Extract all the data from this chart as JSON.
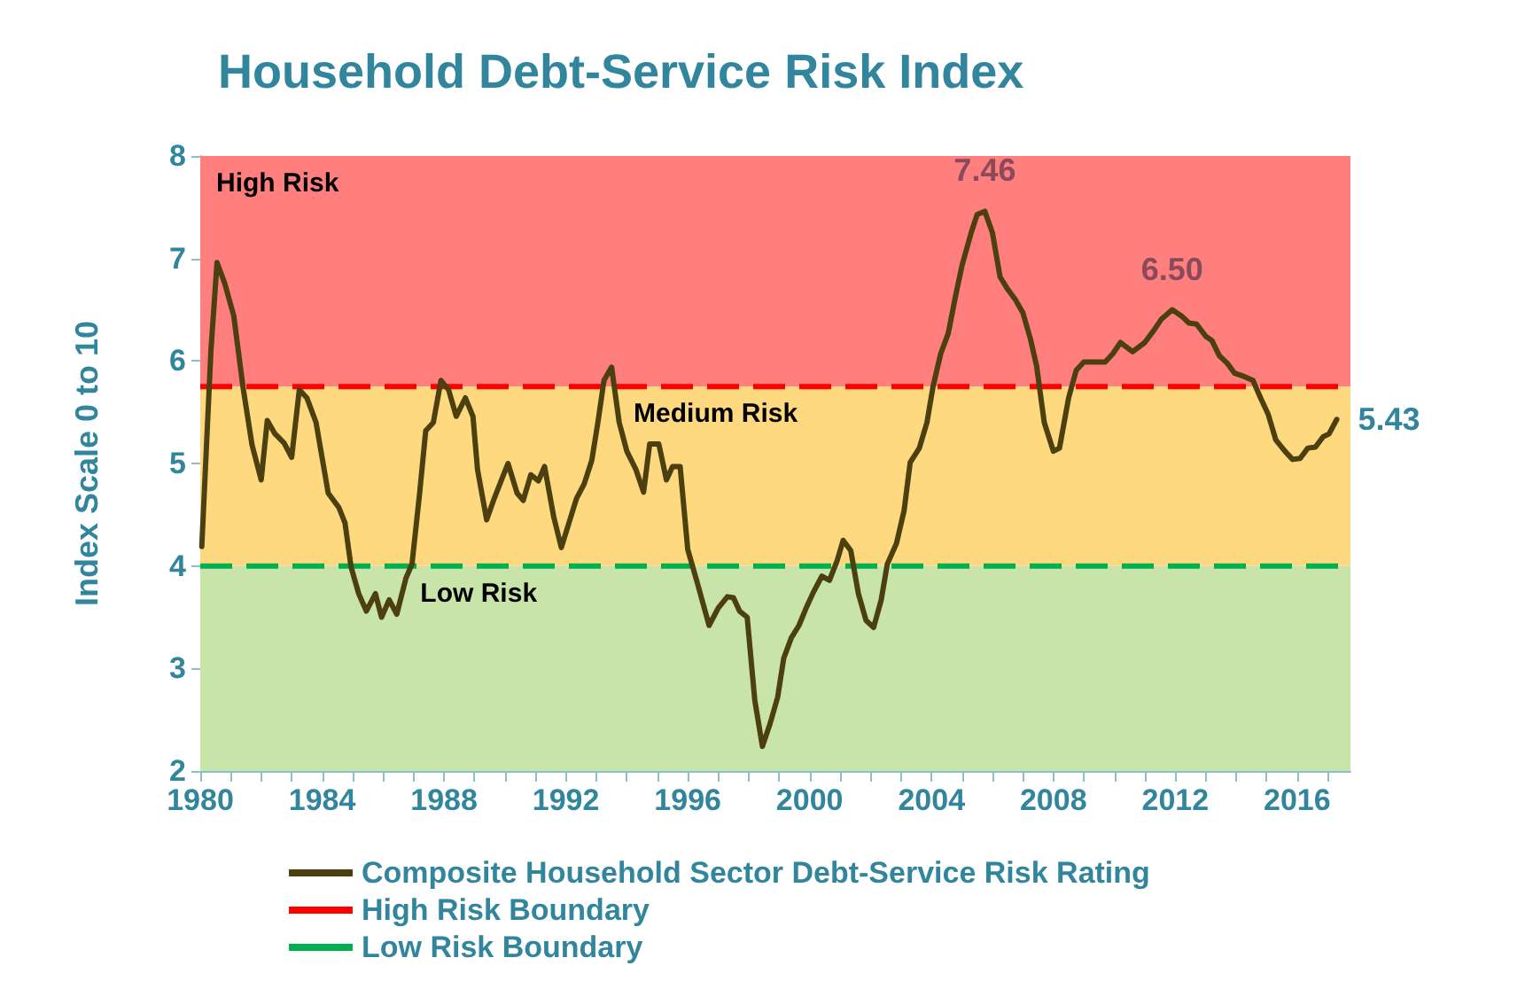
{
  "chart_data": {
    "type": "line",
    "title": "Household Debt-Service Risk Index",
    "ylabel": "Index Scale 0 to 10",
    "xlim": [
      1980,
      2017.75
    ],
    "ylim": [
      2,
      8
    ],
    "yticks": [
      2,
      3,
      4,
      5,
      6,
      7,
      8
    ],
    "xticks": [
      1980,
      {
        "value": 1981,
        "label": null
      },
      {
        "value": 1982,
        "label": null
      },
      {
        "value": 1983,
        "label": null
      },
      1984,
      {
        "value": 1985,
        "label": null
      },
      {
        "value": 1986,
        "label": null
      },
      {
        "value": 1987,
        "label": null
      },
      1988,
      {
        "value": 1989,
        "label": null
      },
      {
        "value": 1990,
        "label": null
      },
      {
        "value": 1991,
        "label": null
      },
      1992,
      {
        "value": 1993,
        "label": null
      },
      {
        "value": 1994,
        "label": null
      },
      {
        "value": 1995,
        "label": null
      },
      1996,
      {
        "value": 1997,
        "label": null
      },
      {
        "value": 1998,
        "label": null
      },
      {
        "value": 1999,
        "label": null
      },
      2000,
      {
        "value": 2001,
        "label": null
      },
      {
        "value": 2002,
        "label": null
      },
      {
        "value": 2003,
        "label": null
      },
      2004,
      {
        "value": 2005,
        "label": null
      },
      {
        "value": 2006,
        "label": null
      },
      {
        "value": 2007,
        "label": null
      },
      2008,
      {
        "value": 2009,
        "label": null
      },
      {
        "value": 2010,
        "label": null
      },
      {
        "value": 2011,
        "label": null
      },
      2012,
      {
        "value": 2013,
        "label": null
      },
      {
        "value": 2014,
        "label": null
      },
      {
        "value": 2015,
        "label": null
      },
      2016,
      {
        "value": 2017,
        "label": null
      }
    ],
    "grid": false,
    "legend": "bottom",
    "marker": "none",
    "line_style": "solid",
    "series": [
      {
        "name": "Composite Household Sector Debt-Service Risk Rating",
        "color": "#4d4010",
        "x": [
          1980.05,
          1980.35,
          1980.55,
          1980.8,
          1981.1,
          1981.4,
          1981.7,
          1982.0,
          1982.2,
          1982.45,
          1982.75,
          1983.0,
          1983.25,
          1983.5,
          1983.8,
          1984.2,
          1984.55,
          1984.75,
          1984.95,
          1985.2,
          1985.45,
          1985.75,
          1985.95,
          1986.2,
          1986.45,
          1986.75,
          1986.95,
          1987.2,
          1987.4,
          1987.65,
          1987.9,
          1988.15,
          1988.4,
          1988.7,
          1988.95,
          1989.1,
          1989.4,
          1989.65,
          1989.9,
          1990.1,
          1990.4,
          1990.6,
          1990.85,
          1991.1,
          1991.3,
          1991.6,
          1991.85,
          1992.1,
          1992.35,
          1992.6,
          1992.85,
          1993.05,
          1993.25,
          1993.5,
          1993.75,
          1994.0,
          1994.3,
          1994.55,
          1994.75,
          1995.05,
          1995.3,
          1995.5,
          1995.75,
          1996.0,
          1996.3,
          1996.7,
          1997.0,
          1997.3,
          1997.5,
          1997.7,
          1997.95,
          1998.2,
          1998.45,
          1998.7,
          1998.95,
          1999.15,
          1999.4,
          1999.65,
          1999.9,
          2000.1,
          2000.4,
          2000.65,
          2000.9,
          2001.1,
          2001.35,
          2001.6,
          2001.85,
          2002.1,
          2002.35,
          2002.55,
          2002.85,
          2003.1,
          2003.3,
          2003.6,
          2003.85,
          2004.05,
          2004.3,
          2004.55,
          2004.8,
          2005.0,
          2005.3,
          2005.5,
          2005.75,
          2006.0,
          2006.25,
          2006.5,
          2006.75,
          2007.0,
          2007.25,
          2007.45,
          2007.7,
          2008.0,
          2008.2,
          2008.5,
          2008.75,
          2009.0,
          2009.3,
          2009.7,
          2009.95,
          2010.2,
          2010.6,
          2011.0,
          2011.3,
          2011.55,
          2011.9,
          2012.2,
          2012.45,
          2012.7,
          2013.0,
          2013.2,
          2013.45,
          2013.7,
          2013.95,
          2014.25,
          2014.55,
          2014.8,
          2015.05,
          2015.3,
          2015.6,
          2015.85,
          2016.1,
          2016.35,
          2016.6,
          2016.85,
          2017.05,
          2017.3
        ],
        "values": [
          4.19,
          6.1,
          6.96,
          6.76,
          6.44,
          5.75,
          5.18,
          4.84,
          5.42,
          5.29,
          5.2,
          5.06,
          5.72,
          5.64,
          5.4,
          4.71,
          4.57,
          4.42,
          3.99,
          3.73,
          3.56,
          3.73,
          3.5,
          3.67,
          3.53,
          3.88,
          4.02,
          4.71,
          5.32,
          5.4,
          5.81,
          5.72,
          5.46,
          5.64,
          5.46,
          4.94,
          4.45,
          4.66,
          4.85,
          5.0,
          4.71,
          4.64,
          4.89,
          4.83,
          4.97,
          4.48,
          4.18,
          4.42,
          4.66,
          4.8,
          5.03,
          5.4,
          5.81,
          5.94,
          5.4,
          5.12,
          4.94,
          4.72,
          5.19,
          5.19,
          4.84,
          4.97,
          4.97,
          4.16,
          3.85,
          3.42,
          3.59,
          3.7,
          3.69,
          3.56,
          3.5,
          2.69,
          2.24,
          2.46,
          2.72,
          3.1,
          3.3,
          3.42,
          3.6,
          3.73,
          3.9,
          3.86,
          4.05,
          4.25,
          4.15,
          3.73,
          3.47,
          3.4,
          3.67,
          4.02,
          4.22,
          4.54,
          5.01,
          5.15,
          5.4,
          5.75,
          6.07,
          6.27,
          6.65,
          6.93,
          7.25,
          7.43,
          7.46,
          7.25,
          6.82,
          6.7,
          6.6,
          6.47,
          6.21,
          5.95,
          5.4,
          5.12,
          5.15,
          5.64,
          5.91,
          5.99,
          5.99,
          5.99,
          6.07,
          6.18,
          6.09,
          6.18,
          6.3,
          6.41,
          6.5,
          6.44,
          6.37,
          6.36,
          6.24,
          6.2,
          6.05,
          5.98,
          5.88,
          5.85,
          5.81,
          5.64,
          5.48,
          5.23,
          5.12,
          5.04,
          5.05,
          5.15,
          5.16,
          5.26,
          5.29,
          5.43
        ]
      }
    ],
    "ref_lines": [
      {
        "axis": "y",
        "value": 5.75,
        "label": "High Risk Boundary",
        "color": "#ff0000",
        "line_style": "dashed"
      },
      {
        "axis": "y",
        "value": 4,
        "label": "Low Risk Boundary",
        "color": "#00b050",
        "line_style": "dashed"
      }
    ],
    "bands": [
      {
        "axis": "y",
        "from": 5.75,
        "to": 8,
        "label": "High Risk",
        "color": "#ff7f7f"
      },
      {
        "axis": "y",
        "from": 4,
        "to": 5.75,
        "label": "Medium Risk",
        "color": "#ffd97f"
      },
      {
        "axis": "y",
        "from": 2,
        "to": 4,
        "label": "Low Risk",
        "color": "#c8e4a8"
      }
    ],
    "annotations": [
      {
        "text": "7.46",
        "x": 2005.75,
        "y": 7.46
      },
      {
        "text": "6.50",
        "x": 2011.9,
        "y": 6.5
      },
      {
        "text": "5.43",
        "x": 2017.3,
        "y": 5.43
      }
    ]
  }
}
